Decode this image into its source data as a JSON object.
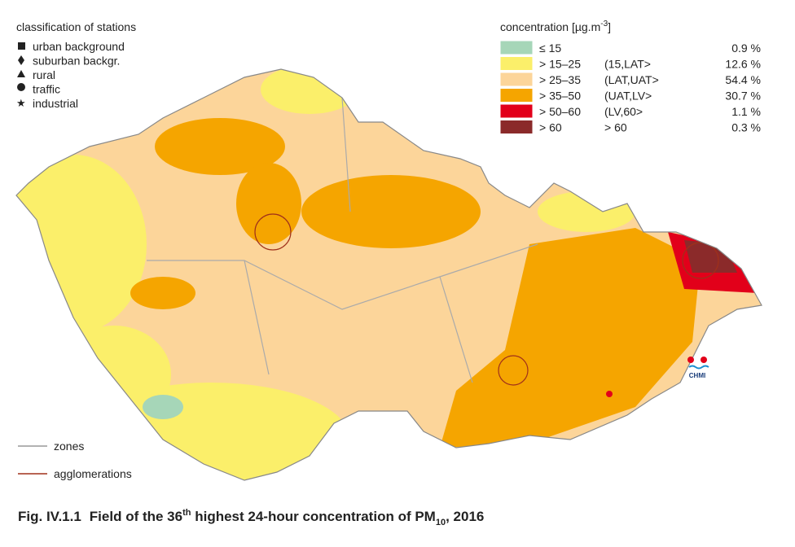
{
  "stations_legend": {
    "title": "classification of stations",
    "items": [
      "urban background",
      "suburban backgr.",
      "rural",
      "traffic",
      "industrial"
    ]
  },
  "concentration_legend": {
    "title": "concentration [µg.m",
    "title_sup": "-3",
    "title_end": "]",
    "classes": [
      {
        "range": "≤ 15",
        "assessment": "",
        "share": "0.9 %"
      },
      {
        "range": "> 15–25",
        "assessment": "(15,LAT>",
        "share": "12.6 %"
      },
      {
        "range": "> 25–35",
        "assessment": "(LAT,UAT>",
        "share": "54.4 %"
      },
      {
        "range": "> 35–50",
        "assessment": "(UAT,LV>",
        "share": "30.7 %"
      },
      {
        "range": "> 50–60",
        "assessment": "(LV,60>",
        "share": "1.1 %"
      },
      {
        "range": "> 60",
        "assessment": "> 60",
        "share": "0.3 %"
      }
    ]
  },
  "lines_legend": {
    "zones": "zones",
    "agglomerations": "agglomerations"
  },
  "logo": "CHMI",
  "caption": {
    "number": "Fig. IV.1.1",
    "part1": "Field of the 36",
    "sup": "th",
    "part2": " highest 24-hour concentration of PM",
    "sub": "10",
    "part3": ", 2016"
  }
}
